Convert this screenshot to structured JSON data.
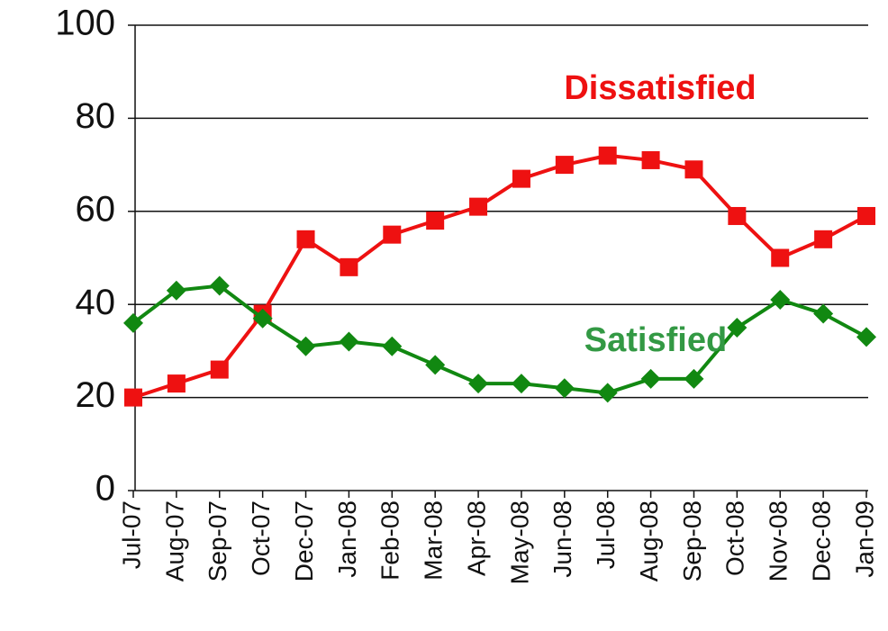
{
  "chart_data": {
    "type": "line",
    "categories": [
      "Jul-07",
      "Aug-07",
      "Sep-07",
      "Oct-07",
      "Dec-07",
      "Jan-08",
      "Feb-08",
      "Mar-08",
      "Apr-08",
      "May-08",
      "Jun-08",
      "Jul-08",
      "Aug-08",
      "Sep-08",
      "Oct-08",
      "Nov-08",
      "Dec-08",
      "Jan-09"
    ],
    "series": [
      {
        "name": "Dissatisfied",
        "color": "#ee1111",
        "marker": "square",
        "values": [
          20,
          23,
          26,
          38,
          54,
          48,
          55,
          58,
          61,
          67,
          70,
          72,
          71,
          69,
          59,
          50,
          54,
          59
        ]
      },
      {
        "name": "Satisfied",
        "color": "#118811",
        "marker": "diamond",
        "values": [
          36,
          43,
          44,
          37,
          31,
          32,
          31,
          27,
          23,
          23,
          22,
          21,
          24,
          24,
          35,
          41,
          38,
          33
        ]
      }
    ],
    "ylim": [
      0,
      100
    ],
    "yticks": [
      0,
      20,
      40,
      60,
      80,
      100
    ],
    "grid": true
  }
}
